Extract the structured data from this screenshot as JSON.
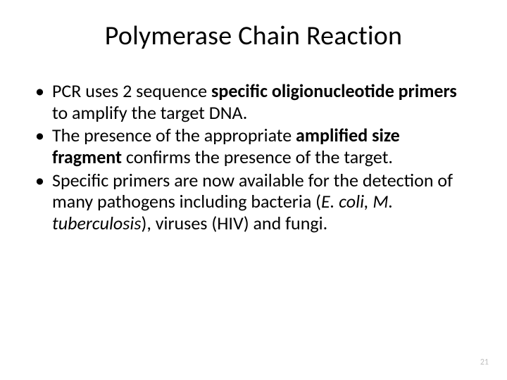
{
  "title": "Polymerase Chain Reaction",
  "bullet1": {
    "a": "PCR uses 2 sequence ",
    "b": "specific oligionucleotide primers",
    "c": " to amplify the target DNA."
  },
  "bullet2": {
    "a": "The presence of the appropriate ",
    "b": "amplified size fragment",
    "c": " confirms the presence of the target."
  },
  "bullet3": {
    "a": "Specific primers are now available for the detection of many pathogens including bacteria (",
    "b": "E. coli, M. tuberculosis",
    "c": "), viruses (HIV) and fungi."
  },
  "page_number": "21",
  "colors": {
    "background": "#ffffff",
    "text": "#000000",
    "pagenum": "#bfbfbf"
  },
  "typography": {
    "title_fontsize": 38,
    "body_fontsize": 26,
    "pagenum_fontsize": 12,
    "font_family": "Calibri"
  }
}
